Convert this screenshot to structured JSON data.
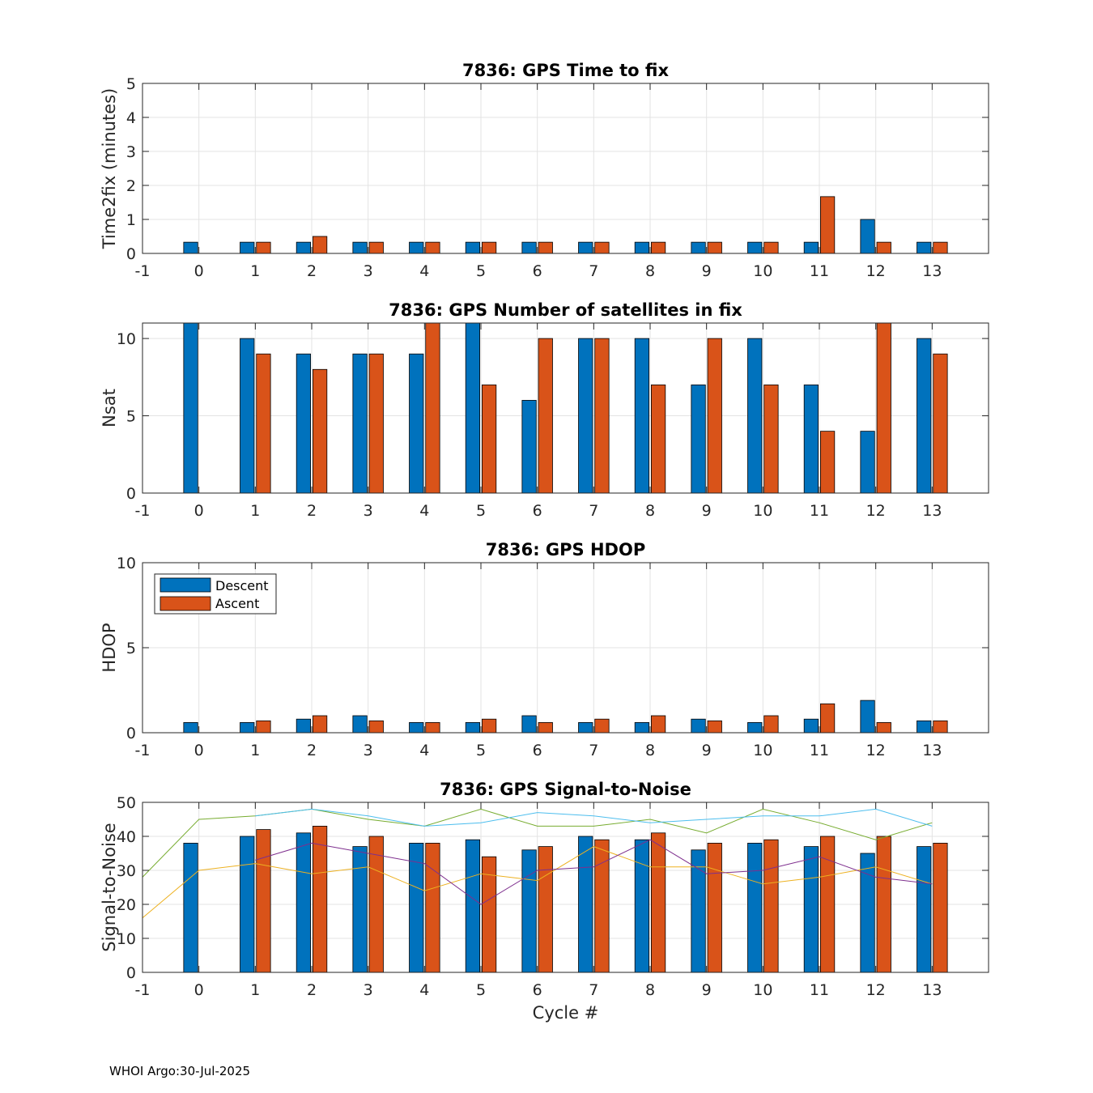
{
  "footer": "WHOI Argo:30-Jul-2025",
  "colors": {
    "descent": "#0072BD",
    "ascent": "#D95319",
    "snr_lines": [
      "#EDB120",
      "#7E2F8E",
      "#77AC30",
      "#4DBEEE"
    ]
  },
  "legend": {
    "descent": "Descent",
    "ascent": "Ascent"
  },
  "chart_data": [
    {
      "type": "bar",
      "title": "7836: GPS Time to fix",
      "xlabel": "",
      "ylabel": "Time2fix (minutes)",
      "xlim": [
        -1,
        14
      ],
      "ylim": [
        0,
        5
      ],
      "xticks": [
        -1,
        0,
        1,
        2,
        3,
        4,
        5,
        6,
        7,
        8,
        9,
        10,
        11,
        12,
        13
      ],
      "yticks": [
        0,
        1,
        2,
        3,
        4,
        5
      ],
      "categories": [
        0,
        1,
        2,
        3,
        4,
        5,
        6,
        7,
        8,
        9,
        10,
        11,
        12,
        13
      ],
      "series": [
        {
          "name": "Descent",
          "values": [
            0.33,
            0.33,
            0.33,
            0.33,
            0.33,
            0.33,
            0.33,
            0.33,
            0.33,
            0.33,
            0.33,
            0.33,
            1.0,
            0.33
          ]
        },
        {
          "name": "Ascent",
          "values": [
            null,
            0.33,
            0.5,
            0.33,
            0.33,
            0.33,
            0.33,
            0.33,
            0.33,
            0.33,
            0.33,
            1.67,
            0.33,
            0.33
          ]
        }
      ]
    },
    {
      "type": "bar",
      "title": "7836: GPS Number of satellites in fix",
      "xlabel": "",
      "ylabel": "Nsat",
      "xlim": [
        -1,
        14
      ],
      "ylim": [
        0,
        11
      ],
      "xticks": [
        -1,
        0,
        1,
        2,
        3,
        4,
        5,
        6,
        7,
        8,
        9,
        10,
        11,
        12,
        13
      ],
      "yticks": [
        0,
        5,
        10
      ],
      "categories": [
        0,
        1,
        2,
        3,
        4,
        5,
        6,
        7,
        8,
        9,
        10,
        11,
        12,
        13
      ],
      "series": [
        {
          "name": "Descent",
          "values": [
            11,
            10,
            9,
            9,
            9,
            11,
            6,
            10,
            10,
            7,
            10,
            7,
            4,
            10
          ]
        },
        {
          "name": "Ascent",
          "values": [
            null,
            9,
            8,
            9,
            11,
            7,
            10,
            10,
            7,
            10,
            7,
            4,
            11,
            9
          ]
        }
      ]
    },
    {
      "type": "bar",
      "title": "7836: GPS HDOP",
      "xlabel": "",
      "ylabel": "HDOP",
      "xlim": [
        -1,
        14
      ],
      "ylim": [
        0,
        10
      ],
      "xticks": [
        -1,
        0,
        1,
        2,
        3,
        4,
        5,
        6,
        7,
        8,
        9,
        10,
        11,
        12,
        13
      ],
      "yticks": [
        0,
        5,
        10
      ],
      "legend_position": "top-left",
      "categories": [
        0,
        1,
        2,
        3,
        4,
        5,
        6,
        7,
        8,
        9,
        10,
        11,
        12,
        13
      ],
      "series": [
        {
          "name": "Descent",
          "values": [
            0.6,
            0.6,
            0.8,
            1.0,
            0.6,
            0.6,
            1.0,
            0.6,
            0.6,
            0.8,
            0.6,
            0.8,
            1.9,
            0.7
          ]
        },
        {
          "name": "Ascent",
          "values": [
            null,
            0.7,
            1.0,
            0.7,
            0.6,
            0.8,
            0.6,
            0.8,
            1.0,
            0.7,
            1.0,
            1.7,
            0.6,
            0.7
          ]
        }
      ]
    },
    {
      "type": "bar",
      "title": "7836: GPS Signal-to-Noise",
      "xlabel": "Cycle #",
      "ylabel": "Signal-to-Noise",
      "xlim": [
        -1,
        14
      ],
      "ylim": [
        0,
        50
      ],
      "xticks": [
        -1,
        0,
        1,
        2,
        3,
        4,
        5,
        6,
        7,
        8,
        9,
        10,
        11,
        12,
        13
      ],
      "yticks": [
        0,
        10,
        20,
        30,
        40,
        50
      ],
      "categories": [
        0,
        1,
        2,
        3,
        4,
        5,
        6,
        7,
        8,
        9,
        10,
        11,
        12,
        13
      ],
      "series": [
        {
          "name": "Descent",
          "values": [
            38,
            40,
            41,
            37,
            38,
            39,
            36,
            40,
            39,
            36,
            38,
            37,
            35,
            37
          ]
        },
        {
          "name": "Ascent",
          "values": [
            null,
            42,
            43,
            40,
            38,
            34,
            37,
            39,
            41,
            38,
            39,
            40,
            40,
            38
          ]
        }
      ],
      "lines": [
        {
          "x": [
            -1,
            0,
            1,
            2,
            3,
            4,
            5,
            6,
            7,
            8,
            9,
            10,
            11,
            12,
            13
          ],
          "y": [
            16,
            30,
            32,
            29,
            31,
            24,
            29,
            27,
            37,
            31,
            31,
            26,
            28,
            31,
            26
          ]
        },
        {
          "x": [
            1,
            2,
            3,
            4,
            5,
            6,
            7,
            8,
            9,
            10,
            11,
            12,
            13
          ],
          "y": [
            33,
            38,
            35,
            32,
            20,
            30,
            31,
            39,
            29,
            30,
            34,
            28,
            26
          ]
        },
        {
          "x": [
            -1,
            0,
            1,
            2,
            3,
            4,
            5,
            6,
            7,
            8,
            9,
            10,
            11,
            12,
            13
          ],
          "y": [
            28,
            45,
            46,
            48,
            45,
            43,
            48,
            43,
            43,
            45,
            41,
            48,
            44,
            39,
            44
          ]
        },
        {
          "x": [
            1,
            2,
            3,
            4,
            5,
            6,
            7,
            8,
            9,
            10,
            11,
            12,
            13
          ],
          "y": [
            46,
            48,
            46,
            43,
            44,
            47,
            46,
            44,
            45,
            46,
            46,
            48,
            43
          ]
        }
      ]
    }
  ]
}
